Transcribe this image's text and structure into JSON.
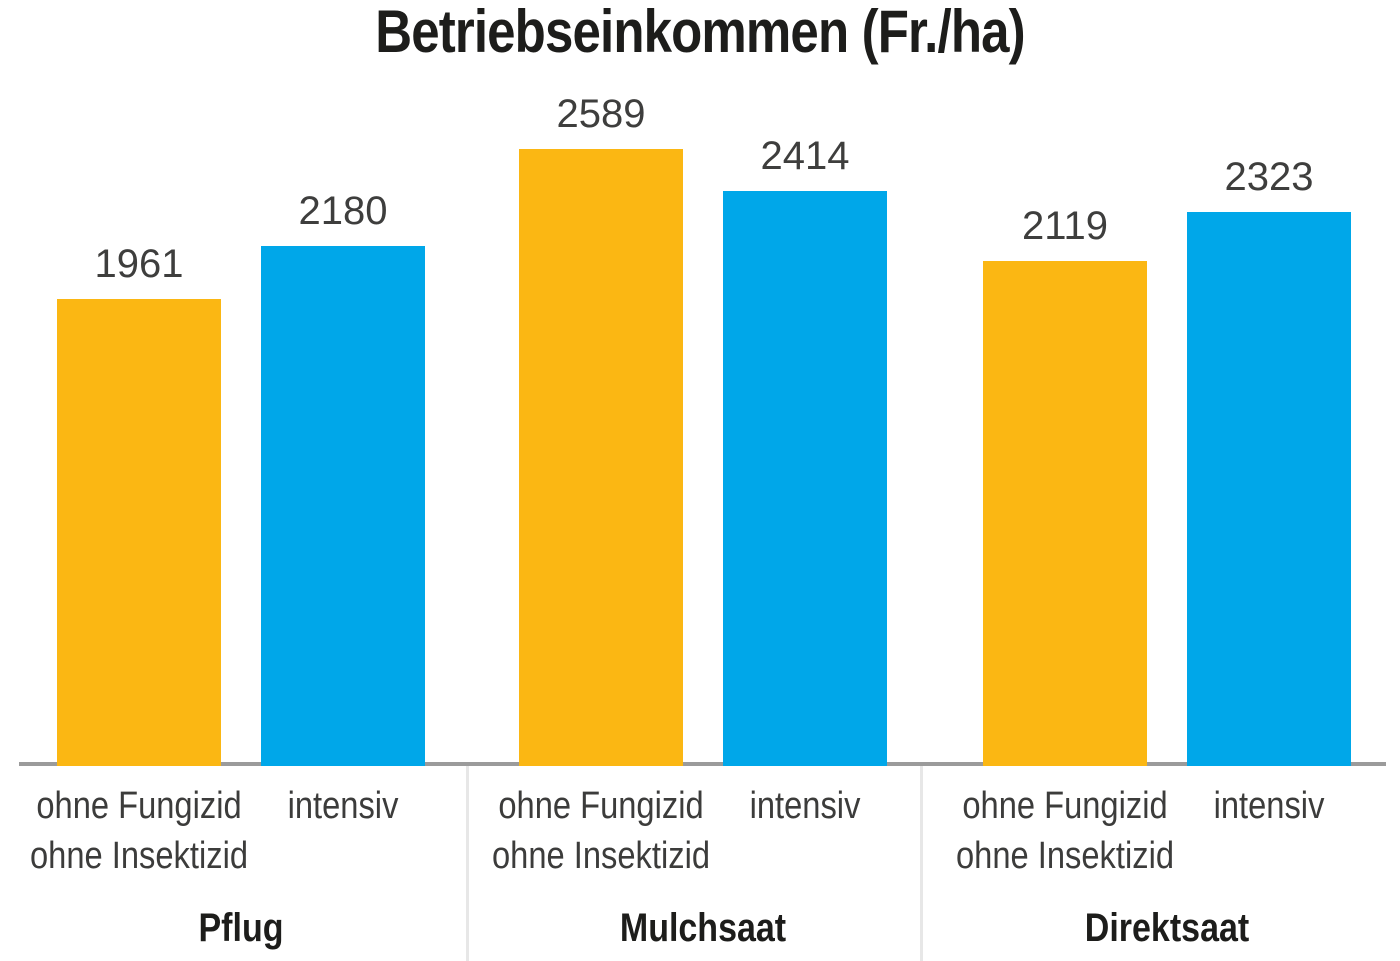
{
  "chart_data": {
    "type": "bar",
    "title": "Betriebseinkommen (Fr./ha)",
    "categories": [
      "Pflug",
      "Mulchsaat",
      "Direktsaat"
    ],
    "series": [
      {
        "name": "ohne Fungizid ohne Insektizid",
        "label_lines": [
          "ohne Fungizid",
          "ohne Insektizid"
        ],
        "color": "#FBB713",
        "values": [
          1961,
          2589,
          2119
        ]
      },
      {
        "name": "intensiv",
        "label_lines": [
          "intensiv"
        ],
        "color": "#00A7E9",
        "values": [
          2180,
          2414,
          2323
        ]
      }
    ],
    "ylim": [
      0,
      2750
    ],
    "xlabel": "",
    "ylabel": "",
    "grid": false,
    "y_axis_shown": false,
    "value_labels_shown": true,
    "legend_position": "none (series labeled under each bar)"
  },
  "colors": {
    "background": "#FFFFFF",
    "title_text": "#1D1D1B",
    "value_text": "#3E3E3D",
    "tick_text": "#3C3C3B",
    "baseline": "#9B9B9B",
    "separator": "#E7E7E7"
  }
}
